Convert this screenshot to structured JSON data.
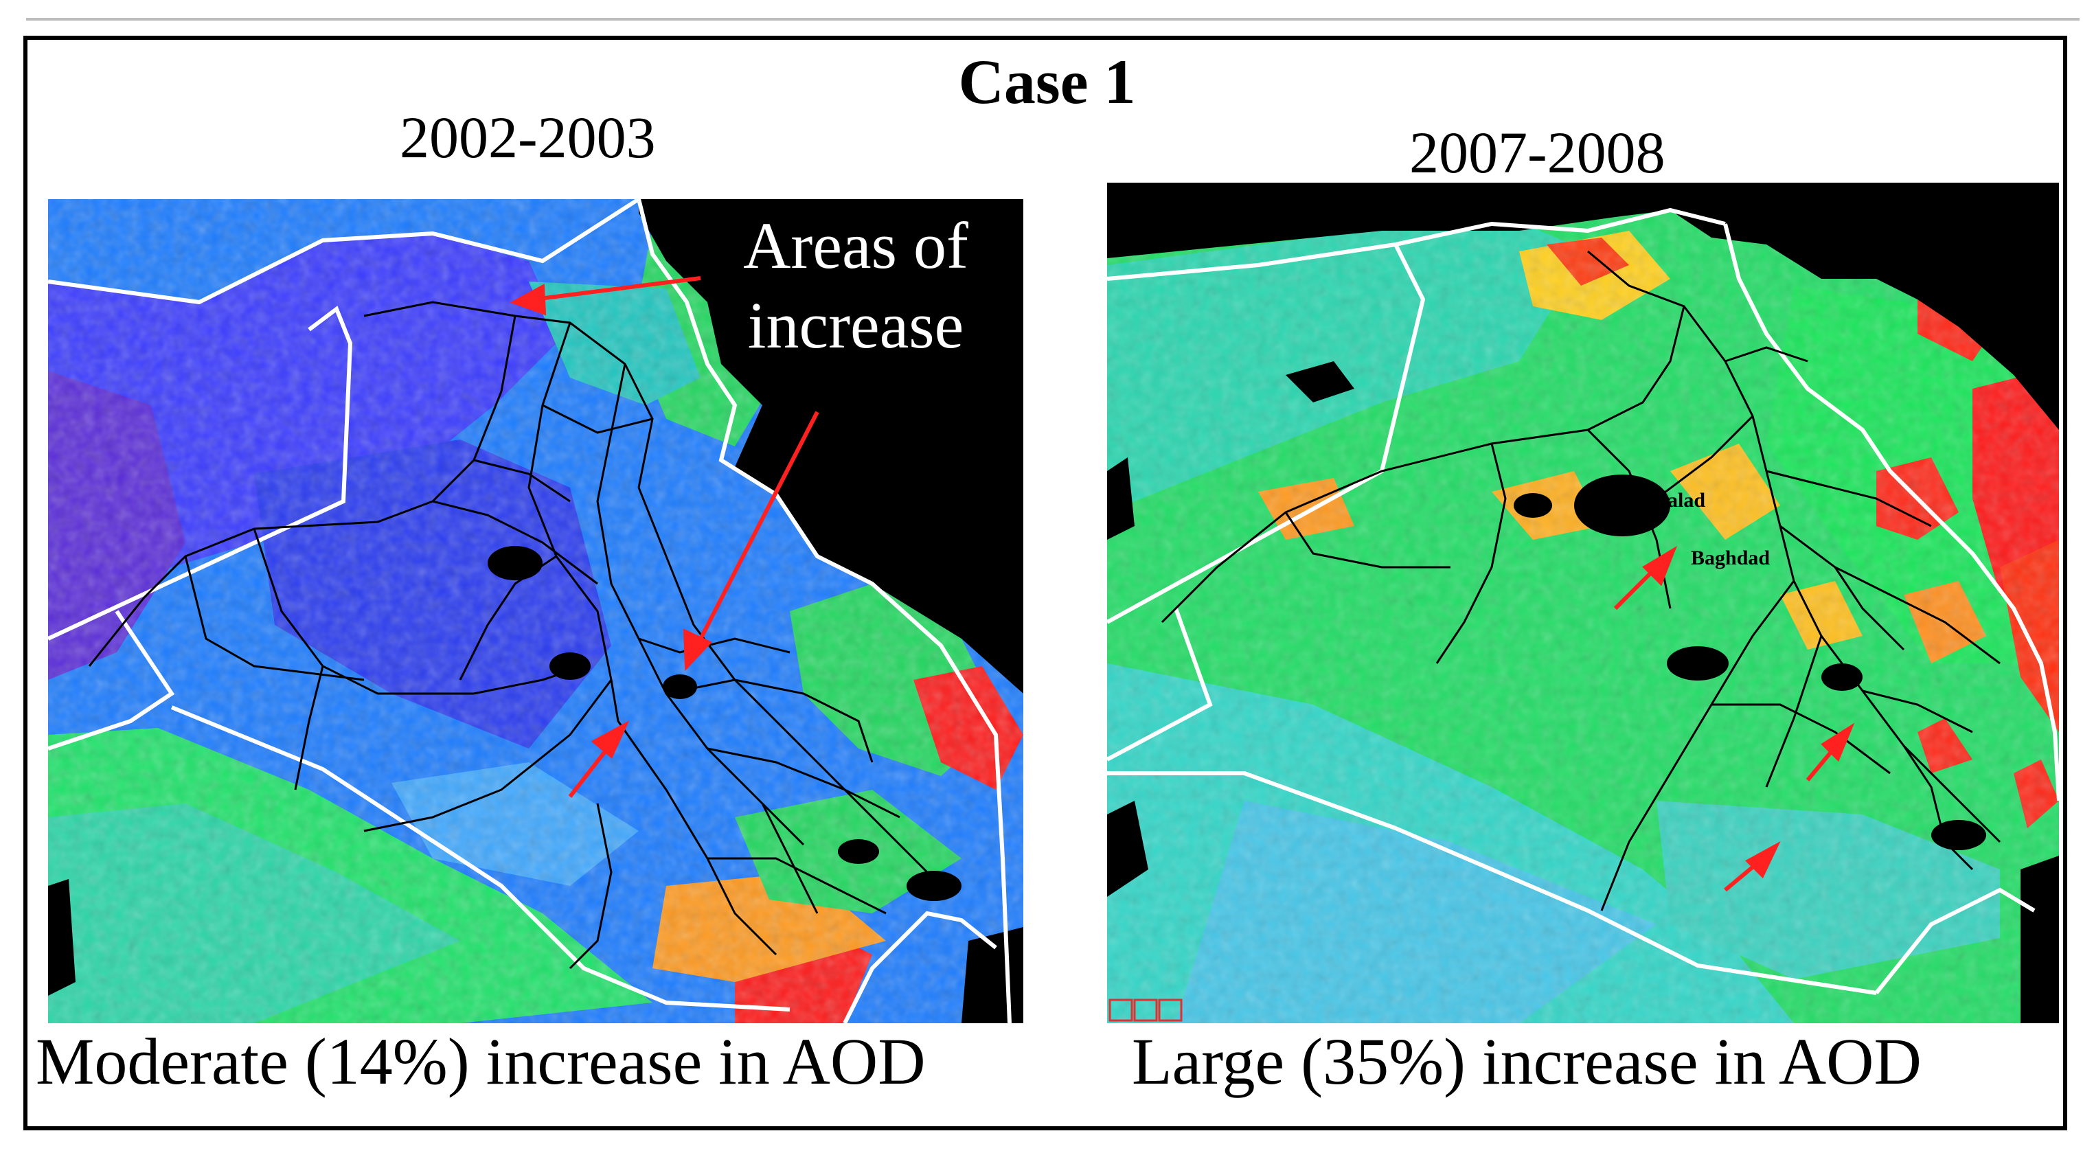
{
  "figure": {
    "title": "Case 1",
    "panels": [
      {
        "period": "2002-2003",
        "caption": "Moderate (14%) increase in AOD",
        "annotation": "Areas of increase",
        "palette": "blue"
      },
      {
        "period": "2007-2008",
        "caption": "Large (35%) increase in AOD",
        "cities": [
          "Balad",
          "Baghdad"
        ],
        "palette": "green"
      }
    ]
  },
  "colors": {
    "background": "#000000",
    "border": "#ffffff",
    "roads": "#000000",
    "arrows": "#ff2020",
    "low_aod": "#2a3cff",
    "mid_aod": "#17e05a",
    "high_aod": "#ff1a1a"
  }
}
